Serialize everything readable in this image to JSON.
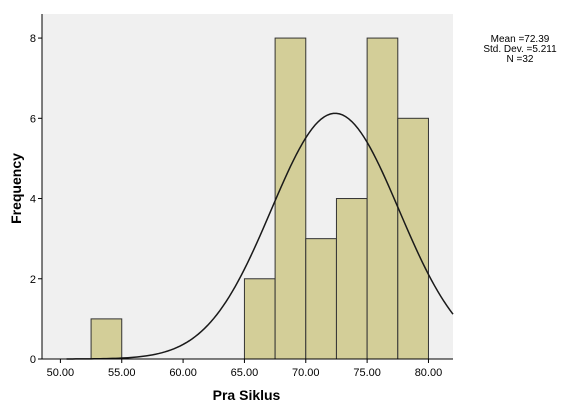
{
  "chart_data": {
    "type": "bar",
    "subtype": "histogram",
    "bin_edges": [
      52.5,
      55,
      57.5,
      60,
      62.5,
      65,
      67.5,
      70,
      72.5,
      75,
      77.5,
      80
    ],
    "values": [
      1,
      0,
      0,
      0,
      0,
      2,
      8,
      3,
      4,
      8,
      6
    ],
    "xlabel": "Pra  Siklus",
    "ylabel": "Frequency",
    "xlim": [
      48.5,
      82
    ],
    "ylim": [
      0,
      8.6
    ],
    "x_ticks": [
      "50.00",
      "55.00",
      "60.00",
      "65.00",
      "70.00",
      "75.00",
      "80.00"
    ],
    "y_ticks": [
      "0",
      "2",
      "4",
      "6",
      "8"
    ],
    "normal_curve": {
      "mean": 72.39,
      "std_dev": 5.211,
      "n": 32,
      "bin_width": 2.5
    },
    "stats": {
      "mean_label": "Mean =72.39",
      "std_label": "Std. Dev. =5.211",
      "n_label": "N =32"
    },
    "legend": "top-right",
    "grid": false,
    "colors": {
      "plot_background": "#f0f0f0",
      "bar_fill": "#d3ce98",
      "bar_stroke": "#333333",
      "curve": "#1a1a1a"
    }
  }
}
